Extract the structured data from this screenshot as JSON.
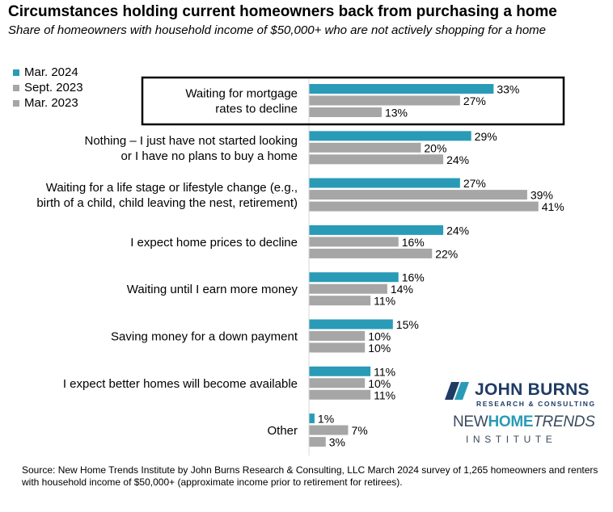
{
  "chart_data": {
    "type": "bar",
    "orientation": "horizontal",
    "title": "Circumstances holding current homeowners back from purchasing a home",
    "subtitle": "Share of homeowners with household income of $50,000+ who are not actively shopping for a home",
    "categories": [
      [
        "Waiting for mortgage",
        "rates to decline"
      ],
      [
        "Nothing – I just have not started looking",
        "or I have no plans to buy a home"
      ],
      [
        "Waiting for a life stage or lifestyle change (e.g.,",
        "birth of a child, child leaving the nest, retirement)"
      ],
      [
        "I expect home prices to decline"
      ],
      [
        "Waiting until I earn more money"
      ],
      [
        "Saving money for a down payment"
      ],
      [
        "I expect better homes will become available"
      ],
      [
        "Other"
      ]
    ],
    "series": [
      {
        "name": "Mar. 2024",
        "color": "#2a9bb6",
        "values": [
          33,
          29,
          27,
          24,
          16,
          15,
          11,
          1
        ]
      },
      {
        "name": "Sept. 2023",
        "color": "#a6a6a6",
        "values": [
          27,
          20,
          39,
          16,
          14,
          10,
          10,
          7
        ]
      },
      {
        "name": "Mar. 2023",
        "color": "#a6a6a6",
        "values": [
          13,
          24,
          41,
          22,
          11,
          10,
          11,
          3
        ]
      }
    ],
    "value_suffix": "%",
    "highlighted_category_index": 0,
    "legend_position": "top-left",
    "grid": false,
    "xlim": [
      0,
      45
    ]
  },
  "logos": {
    "company_name": "JOHN BURNS",
    "company_sub": "RESEARCH & CONSULTING",
    "institute_new": "NEW",
    "institute_home": "HOME",
    "institute_trends": "TRENDS",
    "institute_word": "INSTITUTE"
  },
  "footnote": "Source: New Home Trends Institute by John Burns Research & Consulting, LLC March 2024 survey of 1,265 homeowners and renters with household income of $50,000+ (approximate income prior to retirement for retirees)."
}
